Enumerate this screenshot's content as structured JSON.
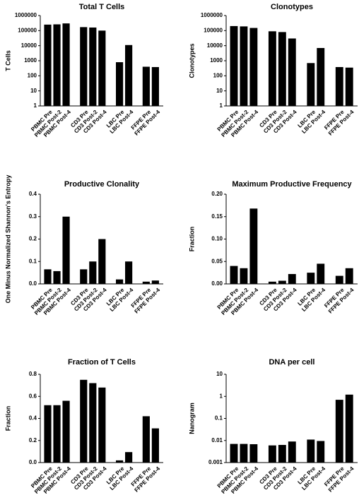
{
  "chart_data": [
    {
      "type": "bar",
      "title": "Total T Cells",
      "ylabel": "T Cells",
      "yscale": "log",
      "ylim": [
        1,
        1000000
      ],
      "yticks": [
        "1",
        "10",
        "100",
        "1000",
        "10000",
        "100000",
        "1000000"
      ],
      "categories": [
        "PBMC Pre",
        "PBMC Post-2",
        "PBMC Post-4",
        "CD3 Pre",
        "CD3 Post-2",
        "CD3 Post-4",
        "LBC Pre",
        "LBC Post-4",
        "FFPE Pre",
        "FFPE Post-4"
      ],
      "values": [
        250000,
        260000,
        300000,
        170000,
        160000,
        100000,
        800,
        11000,
        400,
        380
      ]
    },
    {
      "type": "bar",
      "title": "Clonotypes",
      "ylabel": "Clonotypes",
      "yscale": "log",
      "ylim": [
        1,
        1000000
      ],
      "yticks": [
        "1",
        "10",
        "100",
        "1000",
        "10000",
        "100000",
        "1000000"
      ],
      "categories": [
        "PBMC Pre",
        "PBMC Post-2",
        "PBMC Post-4",
        "CD3 Pre",
        "CD3 Post-2",
        "CD3 Post-4",
        "LBC Pre",
        "LBC Post-4",
        "FFPE Pre",
        "FFPE Post-4"
      ],
      "values": [
        200000,
        190000,
        150000,
        90000,
        80000,
        30000,
        700,
        7000,
        380,
        350
      ]
    },
    {
      "type": "bar",
      "title": "Productive Clonality",
      "ylabel": "One Minus Normalized Shannon's Entropy",
      "yscale": "linear",
      "ylim": [
        0,
        0.4
      ],
      "yticks": [
        "0.0",
        "0.1",
        "0.2",
        "0.3",
        "0.4"
      ],
      "categories": [
        "PBMC Pre",
        "PBMC Post-2",
        "PBMC Post-4",
        "CD3 Pre",
        "CD3 Post-2",
        "CD3 Post-4",
        "LBC Pre",
        "LBC Post-4",
        "FFPE Pre",
        "FFPE Post-4"
      ],
      "values": [
        0.065,
        0.057,
        0.3,
        0.065,
        0.1,
        0.2,
        0.02,
        0.1,
        0.01,
        0.015
      ]
    },
    {
      "type": "bar",
      "title": "Maximum Productive Frequency",
      "ylabel": "Fraction",
      "yscale": "linear",
      "ylim": [
        0,
        0.2
      ],
      "yticks": [
        "0.00",
        "0.05",
        "0.10",
        "0.15",
        "0.20"
      ],
      "categories": [
        "PBMC Pre",
        "PBMC Post-2",
        "PBMC Post-4",
        "CD3 Pre",
        "CD3 Post-2",
        "CD3 Post-4",
        "LBC Pre",
        "LBC Post-4",
        "FFPE Pre",
        "FFPE Post-4"
      ],
      "values": [
        0.04,
        0.035,
        0.168,
        0.005,
        0.007,
        0.022,
        0.025,
        0.045,
        0.018,
        0.035
      ]
    },
    {
      "type": "bar",
      "title": "Fraction of  T Cells",
      "ylabel": "Fraction",
      "yscale": "linear",
      "ylim": [
        0,
        0.8
      ],
      "yticks": [
        "0.0",
        "0.2",
        "0.4",
        "0.6",
        "0.8"
      ],
      "categories": [
        "PBMC Pre",
        "PBMC Post-2",
        "PBMC Post-4",
        "CD3 Pre",
        "CD3 Post-2",
        "CD3 Post-4",
        "LBC Pre",
        "LBC Post-4",
        "FFPE Pre",
        "FFPE Post-4"
      ],
      "values": [
        0.52,
        0.52,
        0.56,
        0.75,
        0.72,
        0.68,
        0.02,
        0.095,
        0.42,
        0.31
      ]
    },
    {
      "type": "bar",
      "title": "DNA per cell",
      "ylabel": "Nanogram",
      "yscale": "log",
      "ylim": [
        0.001,
        10
      ],
      "yticks": [
        "0.001",
        "0.01",
        "0.1",
        "1",
        "10"
      ],
      "categories": [
        "PBMC Pre",
        "PBMC Post-2",
        "PBMC Post-4",
        "CD3 Pre",
        "CD3 Post-2",
        "CD3 Post-4",
        "LBC Pre",
        "LBC Post-4",
        "FFPE Pre",
        "FFPE Post-4"
      ],
      "values": [
        0.007,
        0.007,
        0.0068,
        0.006,
        0.0063,
        0.009,
        0.011,
        0.0095,
        0.7,
        1.2
      ]
    }
  ]
}
